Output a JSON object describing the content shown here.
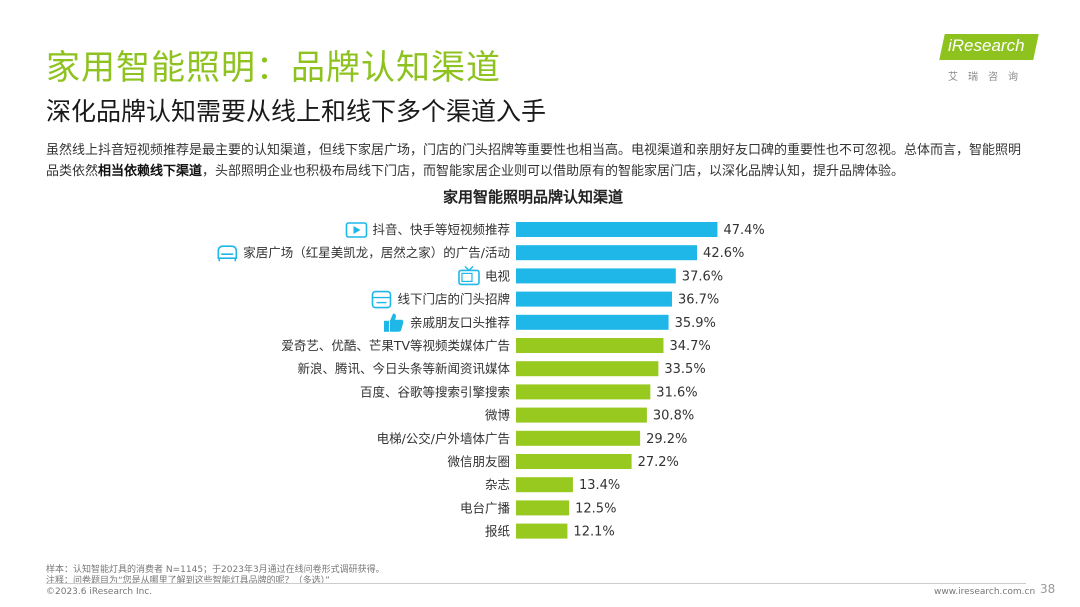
{
  "header": {
    "title": "家用智能照明：品牌认知渠道",
    "subtitle": "深化品牌认知需要从线上和线下多个渠道入手"
  },
  "summary": {
    "part1": "虽然线上抖音短视频推荐是最主要的认知渠道，但线下家居广场，门店的门头招牌等重要性也相当高。电视渠道和亲朋好友口碑的重要性也不可忽视。总体而言，智能照明品类依然",
    "bold": "相当依赖线下渠道",
    "part2": "，头部照明企业也积极布局线下门店，而智能家居企业则可以借助原有的智能家居门店，以深化品牌认知，提升品牌体验。"
  },
  "logo": {
    "name": "iResearch",
    "sub": "艾瑞咨询"
  },
  "colors": {
    "highlight": "#1fb7e8",
    "normal": "#98c91f",
    "title": "#8dc21f"
  },
  "chart_data": {
    "type": "bar",
    "orientation": "horizontal",
    "title": "家用智能照明品牌认知渠道",
    "unit": "%",
    "categories": [
      "抖音、快手等短视频推荐",
      "家居广场（红星美凯龙，居然之家）的广告/活动",
      "电视",
      "线下门店的门头招牌",
      "亲戚朋友口头推荐",
      "爱奇艺、优酷、芒果TV等视频类媒体广告",
      "新浪、腾讯、今日头条等新闻资讯媒体",
      "百度、谷歌等搜索引擎搜索",
      "微博",
      "电梯/公交/户外墙体广告",
      "微信朋友圈",
      "杂志",
      "电台广播",
      "报纸"
    ],
    "values": [
      47.4,
      42.6,
      37.6,
      36.7,
      35.9,
      34.7,
      33.5,
      31.6,
      30.8,
      29.2,
      27.2,
      13.4,
      12.5,
      12.1
    ],
    "labels": [
      "47.4%",
      "42.6%",
      "37.6%",
      "36.7%",
      "35.9%",
      "34.7%",
      "33.5%",
      "31.6%",
      "30.8%",
      "29.2%",
      "27.2%",
      "13.4%",
      "12.5%",
      "12.1%"
    ],
    "highlighted_count": 5,
    "icons": [
      "video-play-icon",
      "sofa-icon",
      "tv-icon",
      "shop-sign-icon",
      "thumbs-up-icon"
    ],
    "xlim": [
      0,
      50
    ]
  },
  "footer": {
    "sample": "样本：认知智能灯具的消费者 N=1145；于2023年3月通过在线问卷形式调研获得。",
    "note": "注释：问卷题目为“您是从哪里了解到这些智能灯具品牌的呢？（多选）”",
    "copyright": "©2023.6 iResearch Inc.",
    "url": "www.iresearch.com.cn",
    "page": "38"
  }
}
